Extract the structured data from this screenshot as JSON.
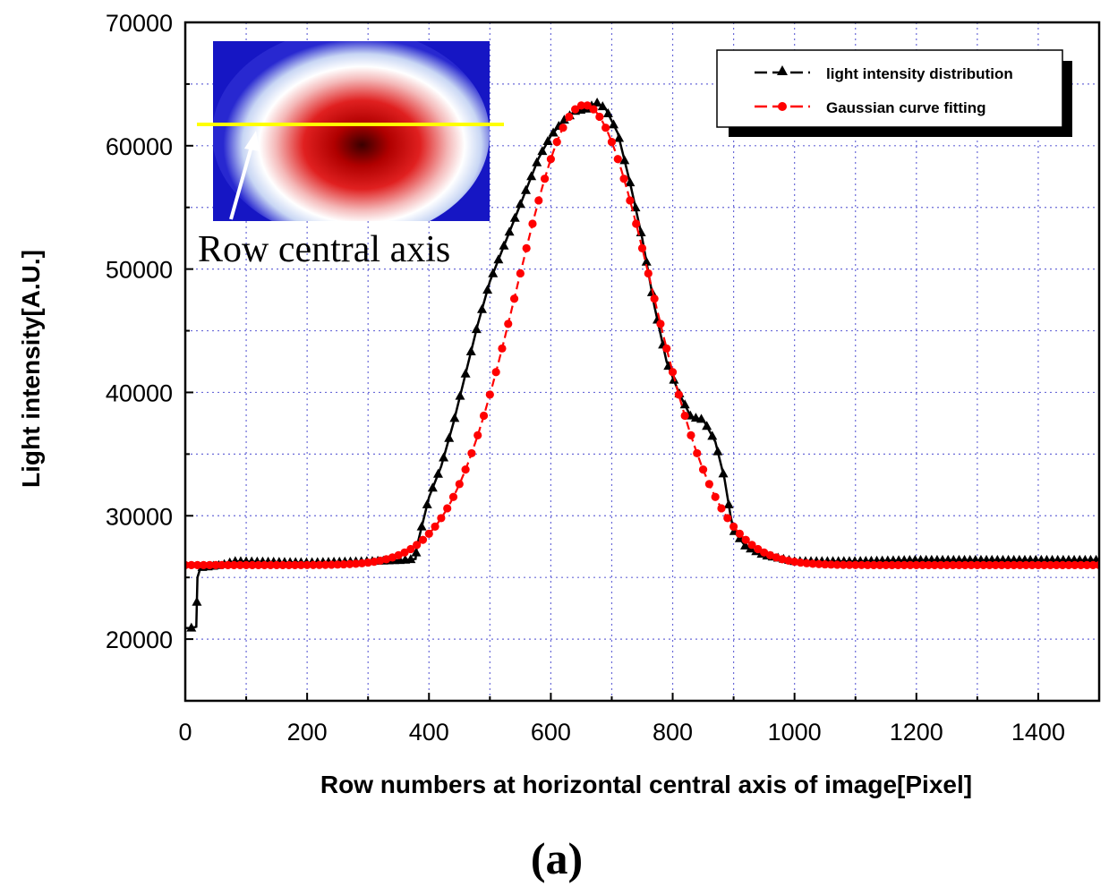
{
  "chart_data": {
    "type": "line",
    "xlabel": "Row numbers at horizontal central axis of image[Pixel]",
    "ylabel": "Light intensity[A.U.]",
    "xlim": [
      0,
      1500
    ],
    "ylim": [
      15000,
      70000
    ],
    "xticks": [
      0,
      200,
      400,
      600,
      800,
      1000,
      1200,
      1400
    ],
    "yticks": [
      20000,
      30000,
      40000,
      50000,
      60000,
      70000
    ],
    "xtick_labels": [
      "0",
      "200",
      "400",
      "600",
      "800",
      "1000",
      "1200",
      "1400"
    ],
    "ytick_labels": [
      "20000",
      "30000",
      "40000",
      "50000",
      "60000",
      "70000"
    ],
    "grid": true,
    "legend_position": "top-right",
    "panel_label": "(a)",
    "series": [
      {
        "name": "light intensity distribution",
        "color": "#000000",
        "marker": "triangle",
        "points": [
          [
            0,
            20900
          ],
          [
            10,
            20900
          ],
          [
            18,
            21000
          ],
          [
            20,
            25000
          ],
          [
            25,
            25800
          ],
          [
            60,
            26000
          ],
          [
            80,
            26300
          ],
          [
            200,
            26200
          ],
          [
            300,
            26300
          ],
          [
            360,
            26400
          ],
          [
            378,
            26500
          ],
          [
            380,
            27500
          ],
          [
            390,
            29500
          ],
          [
            400,
            31500
          ],
          [
            420,
            34000
          ],
          [
            440,
            37500
          ],
          [
            460,
            41500
          ],
          [
            480,
            45500
          ],
          [
            500,
            49000
          ],
          [
            520,
            51500
          ],
          [
            540,
            54000
          ],
          [
            560,
            56500
          ],
          [
            580,
            59000
          ],
          [
            600,
            60800
          ],
          [
            620,
            62000
          ],
          [
            640,
            62800
          ],
          [
            660,
            63000
          ],
          [
            675,
            63500
          ],
          [
            690,
            63000
          ],
          [
            710,
            61000
          ],
          [
            730,
            57000
          ],
          [
            750,
            52500
          ],
          [
            770,
            47000
          ],
          [
            790,
            42500
          ],
          [
            810,
            40000
          ],
          [
            830,
            38000
          ],
          [
            850,
            37800
          ],
          [
            870,
            36000
          ],
          [
            885,
            33000
          ],
          [
            895,
            30000
          ],
          [
            900,
            28800
          ],
          [
            920,
            27500
          ],
          [
            950,
            26800
          ],
          [
            1000,
            26300
          ],
          [
            1100,
            26300
          ],
          [
            1200,
            26400
          ],
          [
            1300,
            26400
          ],
          [
            1400,
            26400
          ],
          [
            1500,
            26400
          ]
        ]
      },
      {
        "name": "Gaussian curve fitting",
        "color": "#ff0000",
        "marker": "circle",
        "baseline": 26000,
        "amplitude": 37300,
        "center": 655,
        "sigma": 110,
        "x_start": 0,
        "x_end": 1500,
        "x_step": 10
      }
    ],
    "inset": {
      "label": "Row central axis",
      "description_colors": [
        "#1414c8",
        "#ffffff",
        "#e01a1a",
        "#5a0000",
        "#ffff00"
      ]
    }
  }
}
